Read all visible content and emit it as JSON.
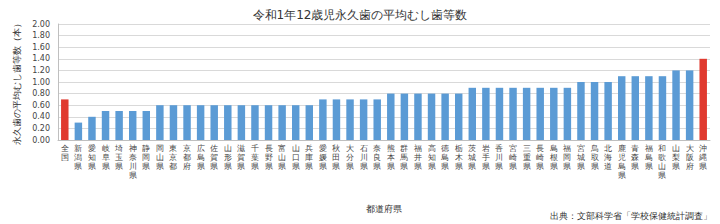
{
  "chart_data": {
    "type": "bar",
    "title": "令和1年12歳児永久歯の平均むし歯等数",
    "x_label": "都道府県",
    "y_label": "永久歯の平均むし歯等数（本）",
    "annotations": [
      "出典：文部科学省「学校保健統計調査」"
    ],
    "categories": [
      "全国",
      "新潟県",
      "愛知県",
      "岐阜県",
      "埼玉県",
      "神奈川県",
      "静岡県",
      "岡山県",
      "東京都",
      "京都府",
      "広島県",
      "佐賀県",
      "山形県",
      "滋賀県",
      "千葉県",
      "長野県",
      "富山県",
      "山口県",
      "兵庫県",
      "愛媛県",
      "秋田県",
      "大分県",
      "石川県",
      "奈良県",
      "熊本県",
      "群馬県",
      "福井県",
      "高知県",
      "徳島県",
      "栃木県",
      "茨城県",
      "岩手県",
      "香川県",
      "宮崎県",
      "三重県",
      "長崎県",
      "島根県",
      "福岡県",
      "宮城県",
      "鳥取県",
      "北海道",
      "鹿児島県",
      "青森県",
      "福島県",
      "和歌山県",
      "山梨県",
      "大阪府",
      "沖縄県"
    ],
    "values": [
      0.7,
      0.3,
      0.4,
      0.5,
      0.5,
      0.5,
      0.5,
      0.6,
      0.6,
      0.6,
      0.6,
      0.6,
      0.6,
      0.6,
      0.6,
      0.6,
      0.6,
      0.6,
      0.6,
      0.7,
      0.7,
      0.7,
      0.7,
      0.7,
      0.8,
      0.8,
      0.8,
      0.8,
      0.8,
      0.8,
      0.9,
      0.9,
      0.9,
      0.9,
      0.9,
      0.9,
      0.9,
      0.9,
      1.0,
      1.0,
      1.0,
      1.1,
      1.1,
      1.1,
      1.1,
      1.2,
      1.2,
      1.4
    ],
    "colors": [
      "#e03a2f",
      "#5b9bd5",
      "#5b9bd5",
      "#5b9bd5",
      "#5b9bd5",
      "#5b9bd5",
      "#5b9bd5",
      "#5b9bd5",
      "#5b9bd5",
      "#5b9bd5",
      "#5b9bd5",
      "#5b9bd5",
      "#5b9bd5",
      "#5b9bd5",
      "#5b9bd5",
      "#5b9bd5",
      "#5b9bd5",
      "#5b9bd5",
      "#5b9bd5",
      "#5b9bd5",
      "#5b9bd5",
      "#5b9bd5",
      "#5b9bd5",
      "#5b9bd5",
      "#5b9bd5",
      "#5b9bd5",
      "#5b9bd5",
      "#5b9bd5",
      "#5b9bd5",
      "#5b9bd5",
      "#5b9bd5",
      "#5b9bd5",
      "#5b9bd5",
      "#5b9bd5",
      "#5b9bd5",
      "#5b9bd5",
      "#5b9bd5",
      "#5b9bd5",
      "#5b9bd5",
      "#5b9bd5",
      "#5b9bd5",
      "#5b9bd5",
      "#5b9bd5",
      "#5b9bd5",
      "#5b9bd5",
      "#5b9bd5",
      "#5b9bd5",
      "#e03a2f"
    ],
    "ylim": [
      0,
      2
    ],
    "yticks": [
      {
        "value": 0,
        "label": "0.00"
      },
      {
        "value": 0.2,
        "label": "0.20"
      },
      {
        "value": 0.4,
        "label": "0.40"
      },
      {
        "value": 0.6,
        "label": "0.60"
      },
      {
        "value": 0.8,
        "label": "0.80"
      },
      {
        "value": 1,
        "label": "1.00"
      },
      {
        "value": 1.2,
        "label": "1.20"
      },
      {
        "value": 1.4,
        "label": "1.40"
      },
      {
        "value": 1.6,
        "label": "1.60"
      },
      {
        "value": 1.8,
        "label": "1.80"
      },
      {
        "value": 2,
        "label": "2.00"
      }
    ],
    "grid": true
  }
}
